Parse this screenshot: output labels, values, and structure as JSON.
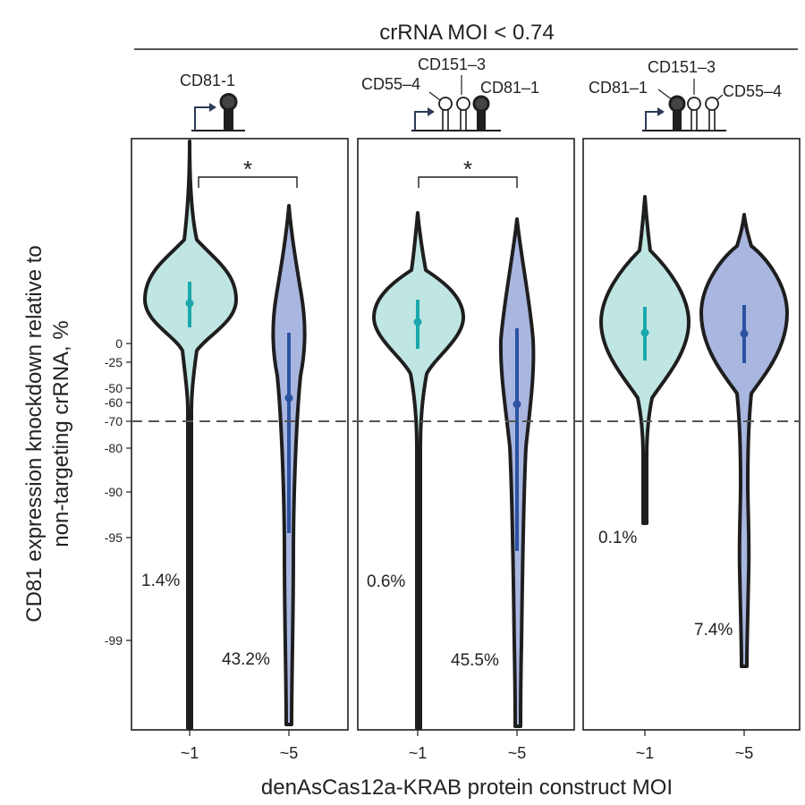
{
  "chart_data": {
    "type": "violin",
    "title": "crRNA MOI < 0.74",
    "xlabel": "denAsCas12a-KRAB protein construct MOI",
    "ylabel_lines": [
      "CD81 expression knockdown relative to",
      "non-targeting crRNA, %"
    ],
    "yticks": [
      "0",
      "-25",
      "-50",
      "-60",
      "-70",
      "-80",
      "-90",
      "-95",
      "-99"
    ],
    "threshold": "-70",
    "colors": {
      "moi1_fill": "#bfe6e2",
      "moi1_marker": "#1aa8ad",
      "moi5_fill": "#a9b6e0",
      "moi5_marker": "#2c52a0",
      "outline": "#1e1e1e"
    },
    "panels": [
      {
        "constructs": [
          "CD81-1"
        ],
        "groups": [
          {
            "x": "~1",
            "below_threshold_pct": "1.4%"
          },
          {
            "x": "~5",
            "below_threshold_pct": "43.2%"
          }
        ],
        "significance": "*"
      },
      {
        "constructs": [
          "CD55–4",
          "CD151–3",
          "CD81–1"
        ],
        "groups": [
          {
            "x": "~1",
            "below_threshold_pct": "0.6%"
          },
          {
            "x": "~5",
            "below_threshold_pct": "45.5%"
          }
        ],
        "significance": "*"
      },
      {
        "constructs": [
          "CD81–1",
          "CD151–3",
          "CD55–4"
        ],
        "groups": [
          {
            "x": "~1",
            "below_threshold_pct": "0.1%"
          },
          {
            "x": "~5",
            "below_threshold_pct": "7.4%"
          }
        ],
        "significance": ""
      }
    ]
  }
}
